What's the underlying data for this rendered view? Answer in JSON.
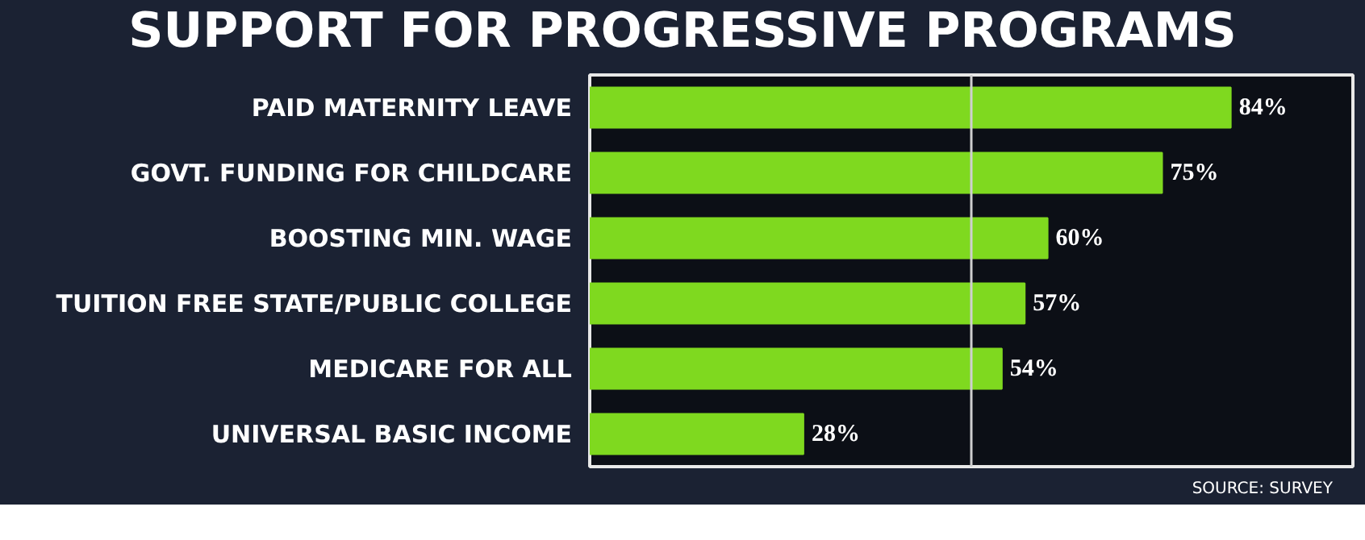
{
  "chart_data": {
    "type": "bar",
    "orientation": "horizontal",
    "title": "SUPPORT FOR PROGRESSIVE PROGRAMS",
    "categories": [
      "PAID MATERNITY LEAVE",
      "GOVT. FUNDING FOR CHILDCARE",
      "BOOSTING MIN. WAGE",
      "TUITION FREE STATE/PUBLIC COLLEGE",
      "MEDICARE FOR ALL",
      "UNIVERSAL BASIC INCOME"
    ],
    "values": [
      84,
      75,
      60,
      57,
      54,
      28
    ],
    "value_labels": [
      "84%",
      "75%",
      "60%",
      "57%",
      "54%",
      "28%"
    ],
    "color": "#7fd91f",
    "xlim": [
      0,
      100
    ],
    "tick_labels": "y",
    "grid": false,
    "ref_lines": [
      {
        "axis": "x",
        "value": 50,
        "color": "#cfcfcf"
      }
    ],
    "annotations": [
      "SOURCE: SURVEY"
    ]
  }
}
